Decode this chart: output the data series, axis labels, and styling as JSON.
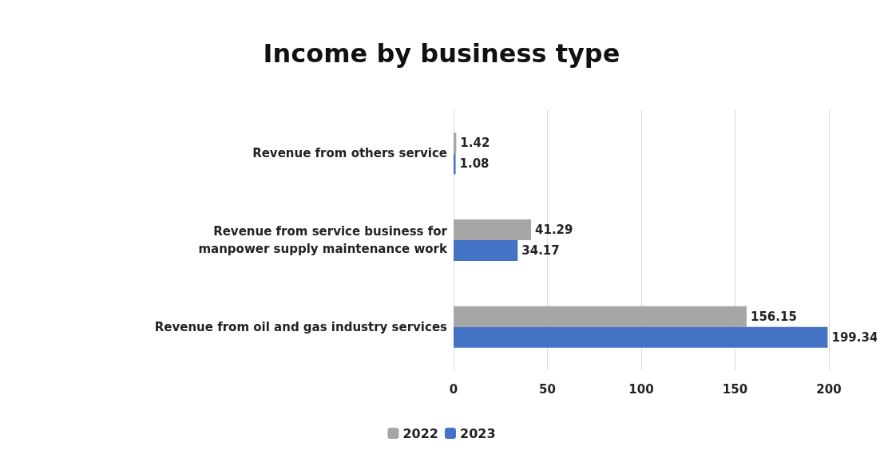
{
  "chart_data": {
    "type": "bar",
    "title": "Income by business type",
    "orientation": "horizontal",
    "categories": [
      "Revenue from others service",
      "Revenue from service business for\nmanpower supply maintenance work",
      "Revenue from oil and gas industry services"
    ],
    "series": [
      {
        "name": "2022",
        "color": "#a6a6a6",
        "values": [
          1.42,
          41.29,
          156.15
        ]
      },
      {
        "name": "2023",
        "color": "#4472c4",
        "values": [
          1.08,
          34.17,
          199.34
        ]
      }
    ],
    "xlim": [
      0,
      200
    ],
    "xticks": [
      0,
      50,
      100,
      150,
      200
    ],
    "grid": "x",
    "legend": "bottom",
    "data_labels": true
  }
}
